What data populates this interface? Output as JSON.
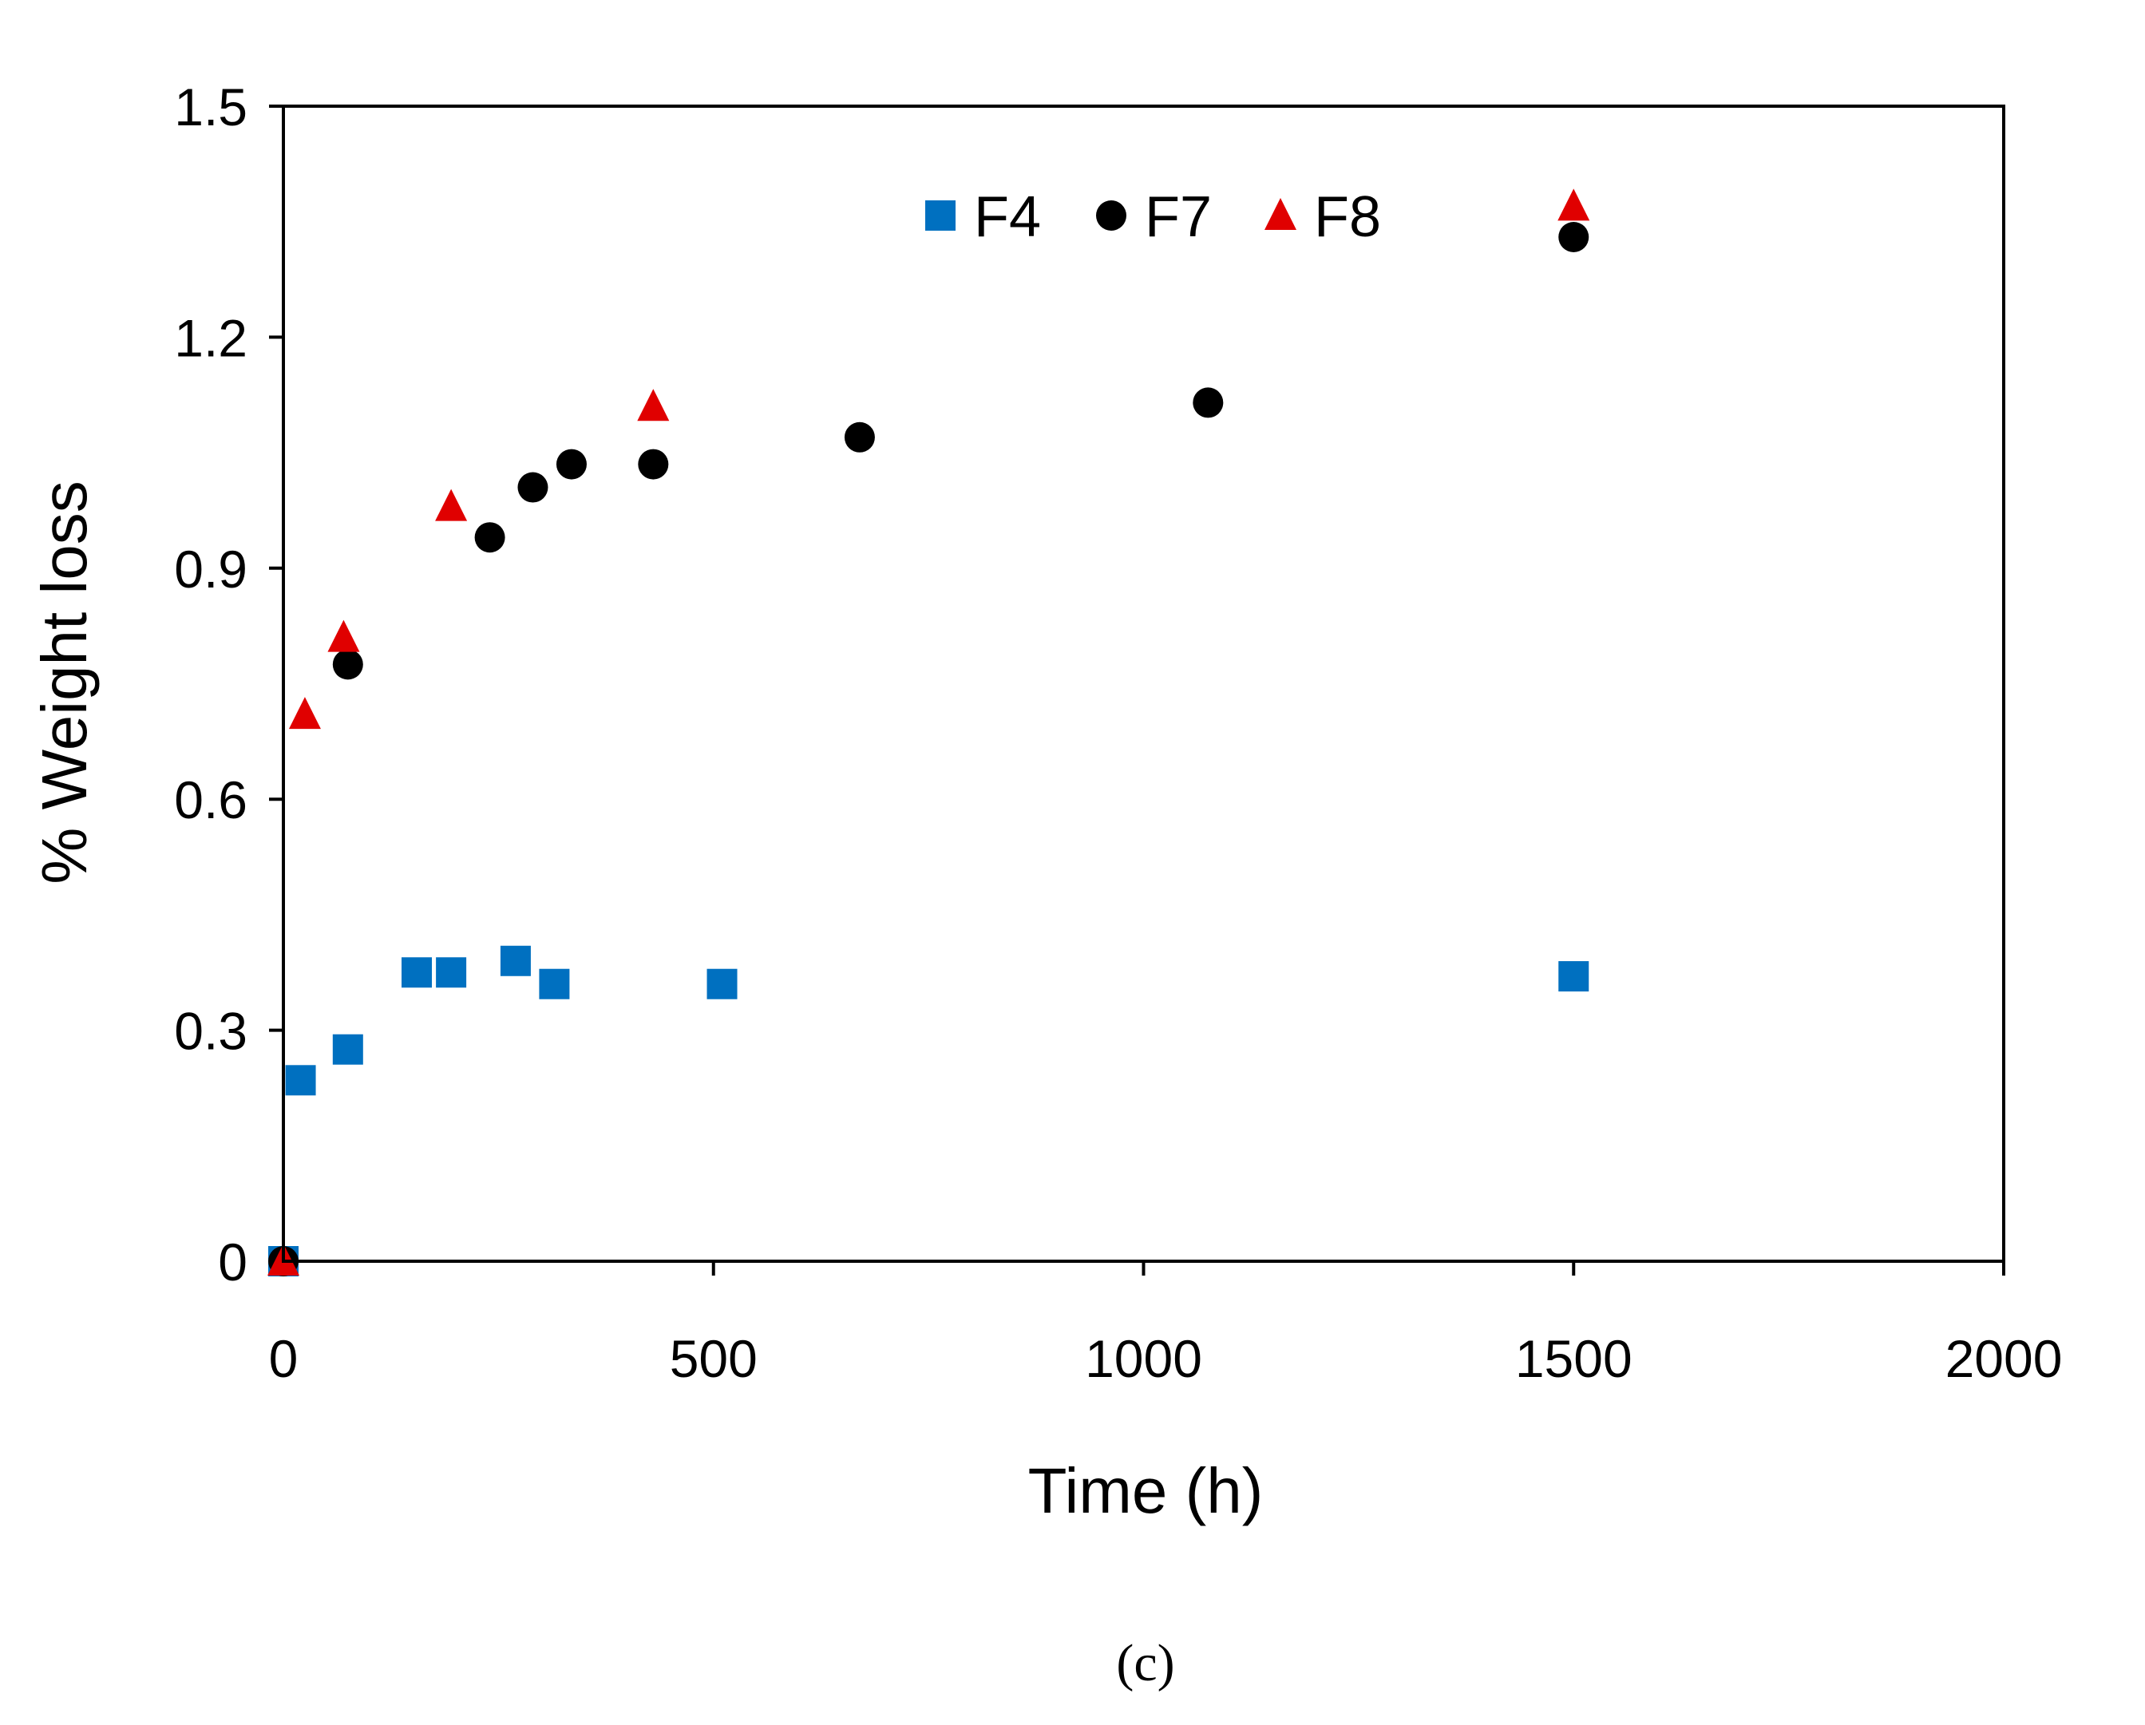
{
  "chart_data": {
    "type": "scatter",
    "title": "",
    "xlabel": "Time (h)",
    "ylabel": "% Weight loss",
    "xlim": [
      0,
      2000
    ],
    "ylim": [
      0,
      1.5
    ],
    "x_ticks": [
      "0",
      "500",
      "1000",
      "1500",
      "2000"
    ],
    "y_ticks": [
      "0",
      "0.3",
      "0.6",
      "0.9",
      "1.2",
      "1.5"
    ],
    "grid": false,
    "legend_position": "top-center",
    "series": [
      {
        "name": "F4",
        "marker": "square",
        "color": "#0070c0",
        "points": [
          [
            0,
            0
          ],
          [
            20,
            0.235
          ],
          [
            75,
            0.275
          ],
          [
            155,
            0.375
          ],
          [
            195,
            0.375
          ],
          [
            270,
            0.39
          ],
          [
            315,
            0.36
          ],
          [
            510,
            0.36
          ],
          [
            1500,
            0.37
          ]
        ]
      },
      {
        "name": "F7",
        "marker": "circle",
        "color": "#000000",
        "points": [
          [
            0,
            0
          ],
          [
            75,
            0.775
          ],
          [
            240,
            0.94
          ],
          [
            290,
            1.005
          ],
          [
            335,
            1.035
          ],
          [
            430,
            1.035
          ],
          [
            670,
            1.07
          ],
          [
            1075,
            1.115
          ],
          [
            1500,
            1.33
          ]
        ]
      },
      {
        "name": "F8",
        "marker": "triangle",
        "color": "#e00000",
        "points": [
          [
            0,
            0
          ],
          [
            25,
            0.71
          ],
          [
            70,
            0.81
          ],
          [
            195,
            0.98
          ],
          [
            430,
            1.11
          ],
          [
            1500,
            1.37
          ]
        ]
      }
    ]
  },
  "panel_label": "(c)"
}
